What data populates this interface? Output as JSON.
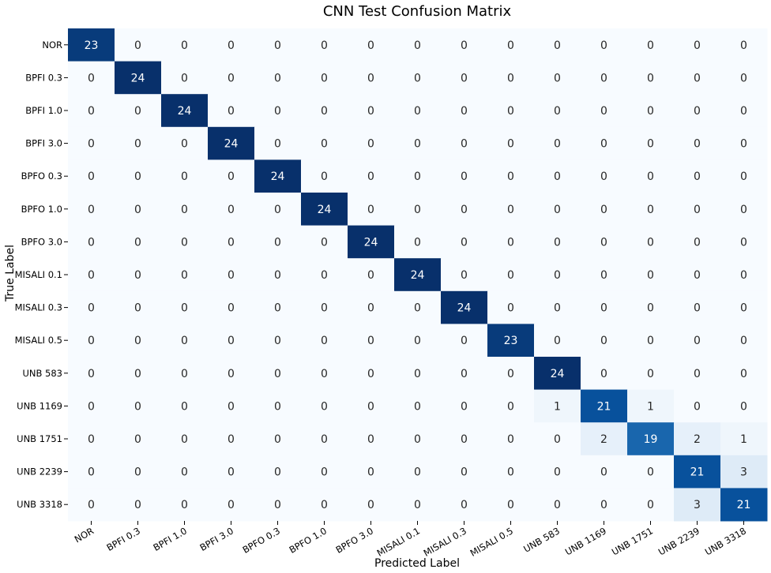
{
  "chart_data": {
    "type": "heatmap",
    "title": "CNN Test Confusion Matrix",
    "xlabel": "Predicted Label",
    "ylabel": "True Label",
    "colormap": "Blues",
    "value_range": [
      0,
      24
    ],
    "colorbar": false,
    "x_categories": [
      "NOR",
      "BPFI 0.3",
      "BPFI 1.0",
      "BPFI 3.0",
      "BPFO 0.3",
      "BPFO 1.0",
      "BPFO 3.0",
      "MISALI 0.1",
      "MISALI 0.3",
      "MISALI 0.5",
      "UNB 583",
      "UNB 1169",
      "UNB 1751",
      "UNB 2239",
      "UNB 3318"
    ],
    "y_categories": [
      "NOR",
      "BPFI 0.3",
      "BPFI 1.0",
      "BPFI 3.0",
      "BPFO 0.3",
      "BPFO 1.0",
      "BPFO 3.0",
      "MISALI 0.1",
      "MISALI 0.3",
      "MISALI 0.5",
      "UNB 583",
      "UNB 1169",
      "UNB 1751",
      "UNB 2239",
      "UNB 3318"
    ],
    "matrix": [
      [
        23,
        0,
        0,
        0,
        0,
        0,
        0,
        0,
        0,
        0,
        0,
        0,
        0,
        0,
        0
      ],
      [
        0,
        24,
        0,
        0,
        0,
        0,
        0,
        0,
        0,
        0,
        0,
        0,
        0,
        0,
        0
      ],
      [
        0,
        0,
        24,
        0,
        0,
        0,
        0,
        0,
        0,
        0,
        0,
        0,
        0,
        0,
        0
      ],
      [
        0,
        0,
        0,
        24,
        0,
        0,
        0,
        0,
        0,
        0,
        0,
        0,
        0,
        0,
        0
      ],
      [
        0,
        0,
        0,
        0,
        24,
        0,
        0,
        0,
        0,
        0,
        0,
        0,
        0,
        0,
        0
      ],
      [
        0,
        0,
        0,
        0,
        0,
        24,
        0,
        0,
        0,
        0,
        0,
        0,
        0,
        0,
        0
      ],
      [
        0,
        0,
        0,
        0,
        0,
        0,
        24,
        0,
        0,
        0,
        0,
        0,
        0,
        0,
        0
      ],
      [
        0,
        0,
        0,
        0,
        0,
        0,
        0,
        24,
        0,
        0,
        0,
        0,
        0,
        0,
        0
      ],
      [
        0,
        0,
        0,
        0,
        0,
        0,
        0,
        0,
        24,
        0,
        0,
        0,
        0,
        0,
        0
      ],
      [
        0,
        0,
        0,
        0,
        0,
        0,
        0,
        0,
        0,
        23,
        0,
        0,
        0,
        0,
        0
      ],
      [
        0,
        0,
        0,
        0,
        0,
        0,
        0,
        0,
        0,
        0,
        24,
        0,
        0,
        0,
        0
      ],
      [
        0,
        0,
        0,
        0,
        0,
        0,
        0,
        0,
        0,
        0,
        1,
        21,
        1,
        0,
        0
      ],
      [
        0,
        0,
        0,
        0,
        0,
        0,
        0,
        0,
        0,
        0,
        0,
        2,
        19,
        2,
        1
      ],
      [
        0,
        0,
        0,
        0,
        0,
        0,
        0,
        0,
        0,
        0,
        0,
        0,
        0,
        21,
        3
      ],
      [
        0,
        0,
        0,
        0,
        0,
        0,
        0,
        0,
        0,
        0,
        0,
        0,
        0,
        3,
        21
      ]
    ]
  }
}
